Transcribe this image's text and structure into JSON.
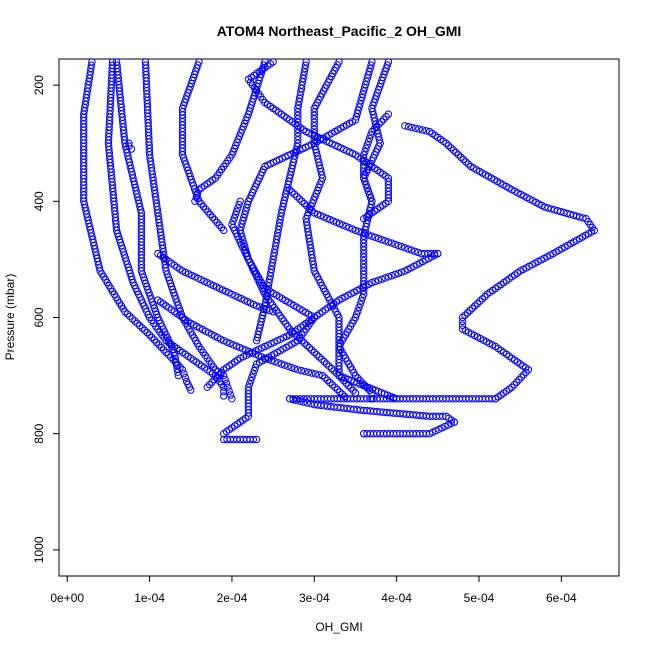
{
  "chart_data": {
    "type": "scatter",
    "title": "ATOM4 Northeast_Pacific_2 OH_GMI",
    "xlabel": "OH_GMI",
    "ylabel": "Pressure (mbar)",
    "xlim": [
      -1e-05,
      0.00067
    ],
    "ylim": [
      1045,
      155
    ],
    "y_reversed": true,
    "x_ticks": [
      0,
      0.0001,
      0.0002,
      0.0003,
      0.0004,
      0.0005,
      0.0006
    ],
    "x_tick_labels": [
      "0e+00",
      "1e-04",
      "2e-04",
      "3e-04",
      "4e-04",
      "5e-04",
      "6e-04"
    ],
    "y_ticks": [
      200,
      400,
      600,
      800,
      1000
    ],
    "y_tick_labels": [
      "200",
      "400",
      "600",
      "800",
      "1000"
    ],
    "marker": "open-circle",
    "marker_color": "#0000ff",
    "grid": false,
    "series": [
      {
        "x": [
          3e-05,
          2e-05,
          2e-05,
          4e-05,
          7e-05,
          0.0001,
          0.00012,
          0.00014,
          0.000145,
          0.00015
        ],
        "y": [
          160,
          250,
          400,
          520,
          590,
          630,
          660,
          690,
          710,
          725
        ]
      },
      {
        "x": [
          5.5e-05,
          5e-05,
          6e-05,
          8e-05,
          0.0001,
          0.00012,
          0.00015,
          0.00017,
          0.00018,
          0.00019,
          0.00019
        ],
        "y": [
          160,
          300,
          450,
          540,
          600,
          640,
          670,
          690,
          700,
          720,
          735
        ]
      },
      {
        "x": [
          6e-05,
          7e-05,
          9e-05,
          9e-05,
          0.00011,
          0.00013,
          0.000135
        ],
        "y": [
          160,
          300,
          420,
          520,
          600,
          660,
          700
        ]
      },
      {
        "x": [
          9.5e-05,
          0.0001,
          0.00011,
          0.00012,
          0.00014,
          0.00016,
          0.00018,
          0.00019,
          0.000195,
          0.0002
        ],
        "y": [
          160,
          320,
          420,
          520,
          600,
          650,
          690,
          700,
          720,
          740
        ]
      },
      {
        "x": [
          0.00016,
          0.00014,
          0.00014,
          0.00016,
          0.00019
        ],
        "y": [
          160,
          240,
          320,
          400,
          450
        ]
      },
      {
        "x": [
          0.00024,
          0.00022,
          0.0002,
          0.00018,
          0.00016,
          0.000155
        ],
        "y": [
          160,
          250,
          320,
          360,
          380,
          400
        ]
      },
      {
        "x": [
          0.00025,
          0.00022,
          0.00024,
          0.00029,
          0.00035,
          0.00039,
          0.00039,
          0.00036
        ],
        "y": [
          160,
          190,
          230,
          280,
          320,
          360,
          400,
          430
        ]
      },
      {
        "x": [
          0.00037,
          0.00035,
          0.0003,
          0.00024,
          0.00022,
          0.00021,
          0.00022,
          0.00024,
          0.0003,
          0.00028,
          0.00023,
          0.00022,
          0.00022,
          0.00019,
          0.00019,
          0.00023
        ],
        "y": [
          160,
          260,
          300,
          340,
          400,
          450,
          500,
          550,
          600,
          640,
          680,
          720,
          770,
          800,
          810,
          810
        ]
      },
      {
        "x": [
          0.00029,
          0.00028,
          0.00028,
          0.00027,
          0.00026,
          0.00025,
          0.00024,
          0.00023
        ],
        "y": [
          160,
          240,
          300,
          360,
          420,
          500,
          580,
          640
        ]
      },
      {
        "x": [
          0.00033,
          0.0003,
          0.0003,
          0.00031,
          0.00029,
          0.0003,
          0.00033,
          0.00033,
          0.00035,
          0.00037,
          0.00037
        ],
        "y": [
          160,
          240,
          300,
          360,
          430,
          520,
          600,
          650,
          700,
          730,
          740
        ]
      },
      {
        "x": [
          0.00039,
          0.00037,
          0.00038,
          0.00036,
          0.00037,
          0.00036,
          0.00036,
          0.00036,
          0.00035,
          0.00033,
          0.00033,
          0.0004
        ],
        "y": [
          160,
          240,
          300,
          360,
          400,
          460,
          520,
          560,
          600,
          650,
          700,
          740
        ]
      },
      {
        "x": [
          0.00039,
          0.00037,
          0.00036,
          0.00036,
          0.00037
        ],
        "y": [
          250,
          280,
          320,
          360,
          400
        ]
      },
      {
        "x": [
          0.00041,
          0.00044,
          0.00046,
          0.00049,
          0.00054,
          0.00058,
          0.00063,
          0.00064,
          0.00059,
          0.00055,
          0.00051,
          0.00048,
          0.00048,
          0.00052,
          0.00056,
          0.00054,
          0.00052,
          0.00052,
          0.00046,
          0.00042,
          0.0003,
          0.00027
        ],
        "y": [
          270,
          280,
          300,
          340,
          380,
          410,
          430,
          450,
          490,
          520,
          560,
          600,
          620,
          650,
          690,
          720,
          740,
          740,
          740,
          740,
          740,
          740
        ]
      },
      {
        "x": [
          0.00027,
          0.0003,
          0.00036,
          0.00044,
          0.00046,
          0.00047
        ],
        "y": [
          740,
          750,
          760,
          770,
          770,
          780
        ]
      },
      {
        "x": [
          0.00047,
          0.00044,
          0.00042,
          0.00036,
          0.00036
        ],
        "y": [
          780,
          800,
          800,
          800,
          800
        ]
      },
      {
        "x": [
          0.00027,
          0.0003,
          0.00035,
          0.00039,
          0.00041,
          0.00043,
          0.00045
        ],
        "y": [
          380,
          420,
          450,
          470,
          480,
          490,
          490
        ]
      },
      {
        "x": [
          0.00045,
          0.00041,
          0.00037,
          0.00033,
          0.0003,
          0.00027,
          0.00024,
          0.00021,
          0.00019,
          0.00017
        ],
        "y": [
          490,
          520,
          540,
          570,
          600,
          630,
          650,
          670,
          690,
          720
        ]
      },
      {
        "x": [
          0.00011,
          0.00014,
          0.00017,
          0.0002,
          0.00023,
          0.00025
        ],
        "y": [
          490,
          520,
          540,
          560,
          580,
          590
        ]
      },
      {
        "x": [
          0.00021,
          0.0002,
          0.00022,
          0.00024,
          0.00027,
          0.0003,
          0.00033,
          0.00035
        ],
        "y": [
          400,
          440,
          500,
          560,
          620,
          660,
          700,
          730
        ]
      },
      {
        "x": [
          0.00011,
          0.00015,
          0.00019,
          0.00024,
          0.00028,
          0.00031,
          0.00034
        ],
        "y": [
          570,
          610,
          640,
          670,
          690,
          700,
          740
        ]
      },
      {
        "x": [
          7.5e-05,
          7.5e-05,
          7.8e-05
        ],
        "y": [
          300,
          305,
          310
        ]
      }
    ]
  }
}
